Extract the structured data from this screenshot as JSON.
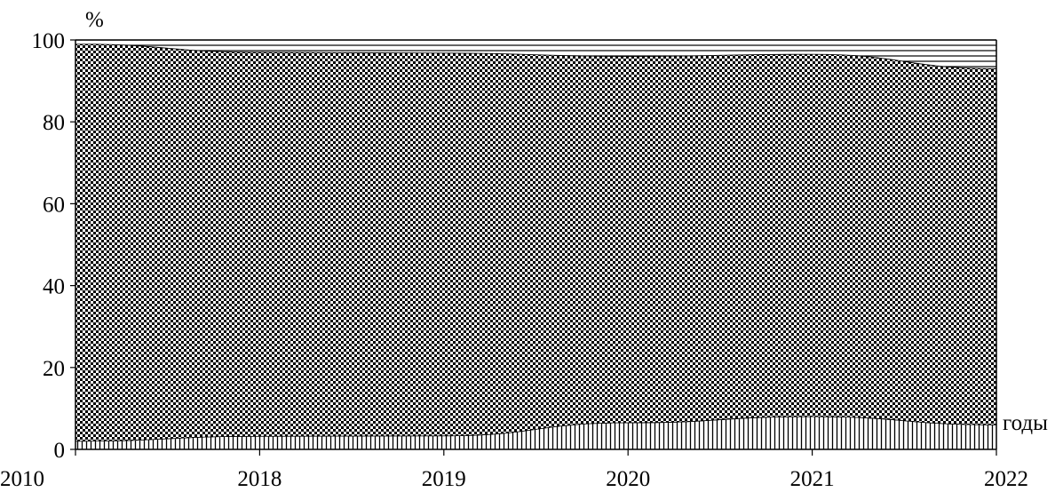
{
  "chart_data": {
    "type": "area",
    "stacked": true,
    "title": "",
    "xlabel": "годы",
    "ylabel": "%",
    "categories": [
      "2010",
      "2018",
      "2019",
      "2020",
      "2021",
      "2022"
    ],
    "ylim": [
      0,
      100
    ],
    "yticks": [
      0,
      20,
      40,
      60,
      80,
      100
    ],
    "grid": false,
    "series": [
      {
        "pattern": "vertical-lines",
        "values": [
          2,
          3.2,
          3.3,
          6.5,
          8,
          6
        ]
      },
      {
        "pattern": "checkerboard",
        "values": [
          97,
          93.8,
          93.5,
          89.5,
          88.5,
          87
        ]
      },
      {
        "pattern": "horizontal-lines",
        "values": [
          1,
          3,
          3.2,
          4,
          3.5,
          7
        ]
      }
    ],
    "colors": {
      "ink": "#000000",
      "paper": "#ffffff"
    }
  }
}
